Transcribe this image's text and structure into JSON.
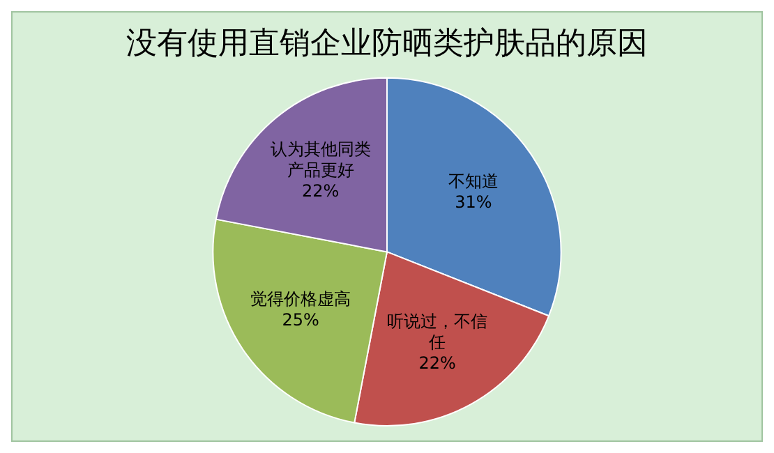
{
  "chart_data": {
    "type": "pie",
    "title": "没有使用直销企业防晒类护肤品的原因",
    "categories": [
      "不知道",
      "听说过，不信任",
      "觉得价格虚高",
      "认为其他同类产品更好"
    ],
    "values": [
      31,
      22,
      25,
      22
    ],
    "colors": [
      "#4f81bd",
      "#c0504d",
      "#9bbb59",
      "#8064a2"
    ],
    "value_labels": [
      "31%",
      "22%",
      "25%",
      "22%"
    ],
    "legend": false
  }
}
